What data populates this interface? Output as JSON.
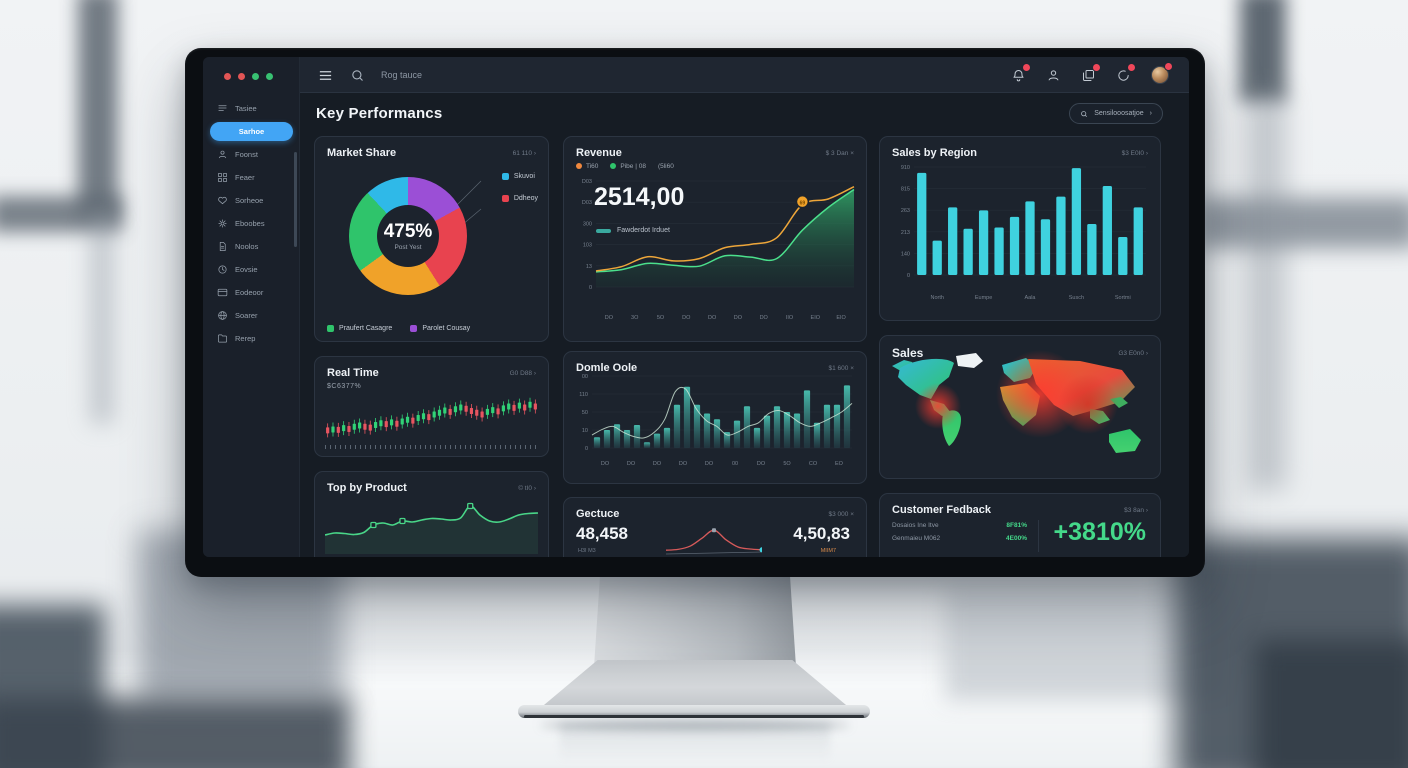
{
  "window_dots": [
    "#e25555",
    "#e25555",
    "#38c172",
    "#38c172"
  ],
  "topbar": {
    "search_text": "Rog tauce",
    "icons": [
      {
        "name": "bell-icon",
        "badge": true
      },
      {
        "name": "user-icon",
        "badge": false
      },
      {
        "name": "layers-icon",
        "badge": true
      },
      {
        "name": "chat-icon",
        "badge": true
      }
    ],
    "avatar_badge": true
  },
  "sidebar": {
    "items": [
      {
        "icon": "list-icon",
        "label": "Tasiee",
        "active": false
      },
      {
        "icon": "",
        "label": "Sarhoe",
        "active": true
      },
      {
        "icon": "person-icon",
        "label": "Foonst",
        "active": false
      },
      {
        "icon": "grid-icon",
        "label": "Feaer",
        "active": false
      },
      {
        "icon": "heart-icon",
        "label": "Sorheoe",
        "active": false
      },
      {
        "icon": "gear-icon",
        "label": "Eboobes",
        "active": false
      },
      {
        "icon": "doc-icon",
        "label": "Noolos",
        "active": false
      },
      {
        "icon": "clock-icon",
        "label": "Eovsie",
        "active": false
      },
      {
        "icon": "card-icon",
        "label": "Eodeoor",
        "active": false
      },
      {
        "icon": "globe-icon",
        "label": "Soarer",
        "active": false
      },
      {
        "icon": "folder-icon",
        "label": "Rerep",
        "active": false
      }
    ]
  },
  "header": {
    "title": "Key Performancs",
    "search_button": "Sensilooosatjoe"
  },
  "cards": {
    "market_share": {
      "title": "Market Share",
      "meta": "61 110 ›",
      "center_value": "475%",
      "center_sub": "Post Yest",
      "side_legend": [
        {
          "label": "Skuvoi",
          "color": "#2fb9e8"
        },
        {
          "label": "Ddheoy",
          "color": "#e8434f"
        }
      ],
      "bottom_legend": [
        {
          "label": "Praufert Casagre",
          "color": "#2fc46b"
        },
        {
          "label": "Parolet Cousay",
          "color": "#9b4fd6"
        }
      ],
      "chart_data": {
        "type": "pie",
        "segments": [
          {
            "pct": 17,
            "color": "#9b4fd6"
          },
          {
            "pct": 24,
            "color": "#e8434f"
          },
          {
            "pct": 24,
            "color": "#f0a229"
          },
          {
            "pct": 23,
            "color": "#2fc46b"
          },
          {
            "pct": 12,
            "color": "#2fb9e8"
          }
        ]
      }
    },
    "revenue": {
      "title": "Revenue",
      "meta": "$ 3 Dan ×",
      "big_value": "2514,00",
      "legend": [
        {
          "label": "Ti60",
          "color": "#f0883e"
        },
        {
          "label": "Pibe | 08",
          "color": "#2fc46b"
        },
        {
          "label": "(5li60",
          "color": ""
        }
      ],
      "series_legend": "Fawderdot Irduet",
      "chart_data": {
        "type": "area",
        "x_labels": [
          "DO",
          "3O",
          "5O",
          "DO",
          "DO",
          "DO",
          "DO",
          "IIO",
          "EIO",
          "EIO"
        ],
        "y_labels": [
          "D03",
          "D03",
          "300",
          "103",
          "13",
          "0"
        ],
        "ylim": [
          0,
          560
        ],
        "series": [
          {
            "name": "area",
            "values": [
              80,
              92,
              125,
              115,
              110,
              165,
              158,
              150,
              300,
              420,
              515
            ],
            "color": "#4be08c",
            "fill": true
          },
          {
            "name": "line",
            "values": [
              85,
              108,
              160,
              138,
              150,
              208,
              225,
              260,
              435,
              465,
              530
            ],
            "color": "#eda63a",
            "marker_index": 8,
            "marker_label": "69"
          }
        ]
      }
    },
    "sales_by_region": {
      "title": "Sales by Region",
      "meta": "$3 E0I0 ›",
      "chart_data": {
        "type": "bar",
        "values": [
          860,
          290,
          570,
          390,
          545,
          400,
          490,
          620,
          470,
          660,
          900,
          430,
          750,
          320,
          570
        ],
        "ylim": [
          0,
          910
        ],
        "y_labels": [
          "910",
          "815",
          "263",
          "213",
          "140",
          "0"
        ],
        "x_labels": [
          "North",
          "Eumpe",
          "Aala",
          "Susch",
          "Sortmi"
        ],
        "bar_color": "#3fd2df"
      }
    },
    "real_time": {
      "title": "Real Time",
      "meta": "G0 D88 ›",
      "sub_value": "$C6377%",
      "chart_data": {
        "type": "candlestick",
        "up_color": "#31d277",
        "down_color": "#e85560",
        "candles": [
          [
            22,
            "r"
          ],
          [
            24,
            "g"
          ],
          [
            23,
            "r"
          ],
          [
            27,
            "g"
          ],
          [
            25,
            "r"
          ],
          [
            30,
            "g"
          ],
          [
            33,
            "g"
          ],
          [
            30,
            "r"
          ],
          [
            28,
            "r"
          ],
          [
            34,
            "g"
          ],
          [
            38,
            "g"
          ],
          [
            36,
            "r"
          ],
          [
            40,
            "g"
          ],
          [
            37,
            "r"
          ],
          [
            42,
            "g"
          ],
          [
            46,
            "g"
          ],
          [
            44,
            "r"
          ],
          [
            50,
            "g"
          ],
          [
            54,
            "g"
          ],
          [
            52,
            "r"
          ],
          [
            58,
            "g"
          ],
          [
            62,
            "g"
          ],
          [
            67,
            "g"
          ],
          [
            64,
            "r"
          ],
          [
            70,
            "g"
          ],
          [
            74,
            "g"
          ],
          [
            71,
            "r"
          ],
          [
            66,
            "r"
          ],
          [
            62,
            "r"
          ],
          [
            58,
            "r"
          ],
          [
            64,
            "g"
          ],
          [
            68,
            "g"
          ],
          [
            65,
            "r"
          ],
          [
            72,
            "g"
          ],
          [
            76,
            "g"
          ],
          [
            73,
            "r"
          ],
          [
            78,
            "g"
          ],
          [
            74,
            "r"
          ],
          [
            80,
            "g"
          ],
          [
            76,
            "r"
          ]
        ]
      }
    },
    "domle_oole": {
      "title": "Domle Oole",
      "meta": "$1 600 ×",
      "chart_data": {
        "type": "bar",
        "bars": [
          15,
          25,
          33,
          25,
          32,
          8,
          20,
          28,
          60,
          85,
          60,
          48,
          40,
          22,
          38,
          58,
          28,
          45,
          58,
          50,
          48,
          80,
          35,
          60,
          60,
          87
        ],
        "line": [
          18,
          26,
          30,
          22,
          16,
          14,
          22,
          40,
          78,
          82,
          55,
          38,
          30,
          18,
          22,
          30,
          35,
          48,
          52,
          45,
          35,
          30,
          35,
          42,
          50,
          62
        ],
        "ylim": [
          0,
          100
        ],
        "y_labels": [
          "00",
          "110",
          "50",
          "10",
          "0"
        ],
        "x_labels": [
          "DO",
          "DO",
          "DO",
          "DO",
          "DO",
          "00",
          "DO",
          "5O",
          "CO",
          "EO"
        ],
        "bar_color": "#3fae9f",
        "line_color": "#cfe8d8"
      }
    },
    "top_by_product": {
      "title": "Top by Product",
      "meta": "© tI0 ›",
      "chart_data": {
        "type": "line",
        "values": [
          30,
          34,
          33,
          31,
          35,
          50,
          54,
          50,
          58,
          56,
          60,
          63,
          62,
          60,
          64,
          88,
          70,
          58,
          56,
          62,
          70,
          73,
          74
        ],
        "markers": [
          5,
          8,
          15
        ],
        "ylim": [
          0,
          100
        ],
        "color": "#49d688"
      }
    },
    "gectuce": {
      "title": "Gectuce",
      "meta": "$3 000 ×",
      "left_value": "48,458",
      "left_sub": "H3I M3",
      "right_value": "4,50,83",
      "right_sub": "MIIM7",
      "chart_data": {
        "type": "line",
        "values": [
          12,
          14,
          22,
          42,
          62,
          38,
          20,
          15,
          13
        ],
        "ylim": [
          0,
          70
        ],
        "color": "#d65a5a",
        "peak_marker": 4,
        "end_dot": 8
      }
    },
    "sales_map": {
      "title": "Sales",
      "meta": "G3 E0n0 ›"
    },
    "customer_fedback": {
      "title": "Customer Fedback",
      "meta": "$3 8an ›",
      "rows": [
        {
          "label": "Dosaios Ine Itve",
          "value": "8F81%"
        },
        {
          "label": "Genmaieu M062",
          "value": "4E00%"
        }
      ],
      "big_value": "+3810%"
    }
  },
  "colors": {
    "accent_blue": "#42a5f5",
    "cyan": "#3fd2df",
    "green": "#2fc46b",
    "orange": "#f0a229",
    "red": "#e8434f",
    "purple": "#9b4fd6",
    "bright_green": "#44d98a"
  }
}
